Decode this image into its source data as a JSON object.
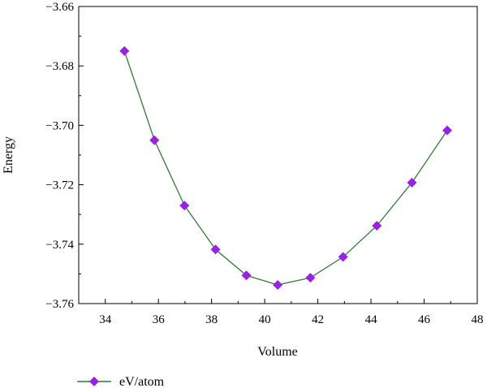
{
  "chart_data": {
    "type": "line",
    "xlabel": "Volume",
    "ylabel": "Energy",
    "xlim": [
      33,
      48
    ],
    "ylim": [
      -3.76,
      -3.66
    ],
    "xticks": [
      34,
      36,
      38,
      40,
      42,
      44,
      46,
      48
    ],
    "yticks": [
      -3.66,
      -3.68,
      -3.7,
      -3.72,
      -3.74,
      -3.76
    ],
    "xtick_labels": [
      "34",
      "36",
      "38",
      "40",
      "42",
      "44",
      "46",
      "48"
    ],
    "ytick_labels": [
      "−3.66",
      "−3.68",
      "−3.70",
      "−3.72",
      "−3.74",
      "−3.76"
    ],
    "grid": false,
    "legend_position": "bottom-left",
    "series": [
      {
        "name": "eV/atom",
        "line_color": "#2e7d32",
        "marker_color": "#9b1fe8",
        "marker": "diamond",
        "x": [
          34.72,
          35.85,
          36.98,
          38.15,
          39.31,
          40.49,
          41.72,
          42.95,
          44.22,
          45.54,
          46.87
        ],
        "y": [
          -3.675,
          -3.705,
          -3.727,
          -3.7418,
          -3.7505,
          -3.7537,
          -3.7513,
          -3.7443,
          -3.7338,
          -3.7193,
          -3.7017
        ]
      }
    ]
  }
}
